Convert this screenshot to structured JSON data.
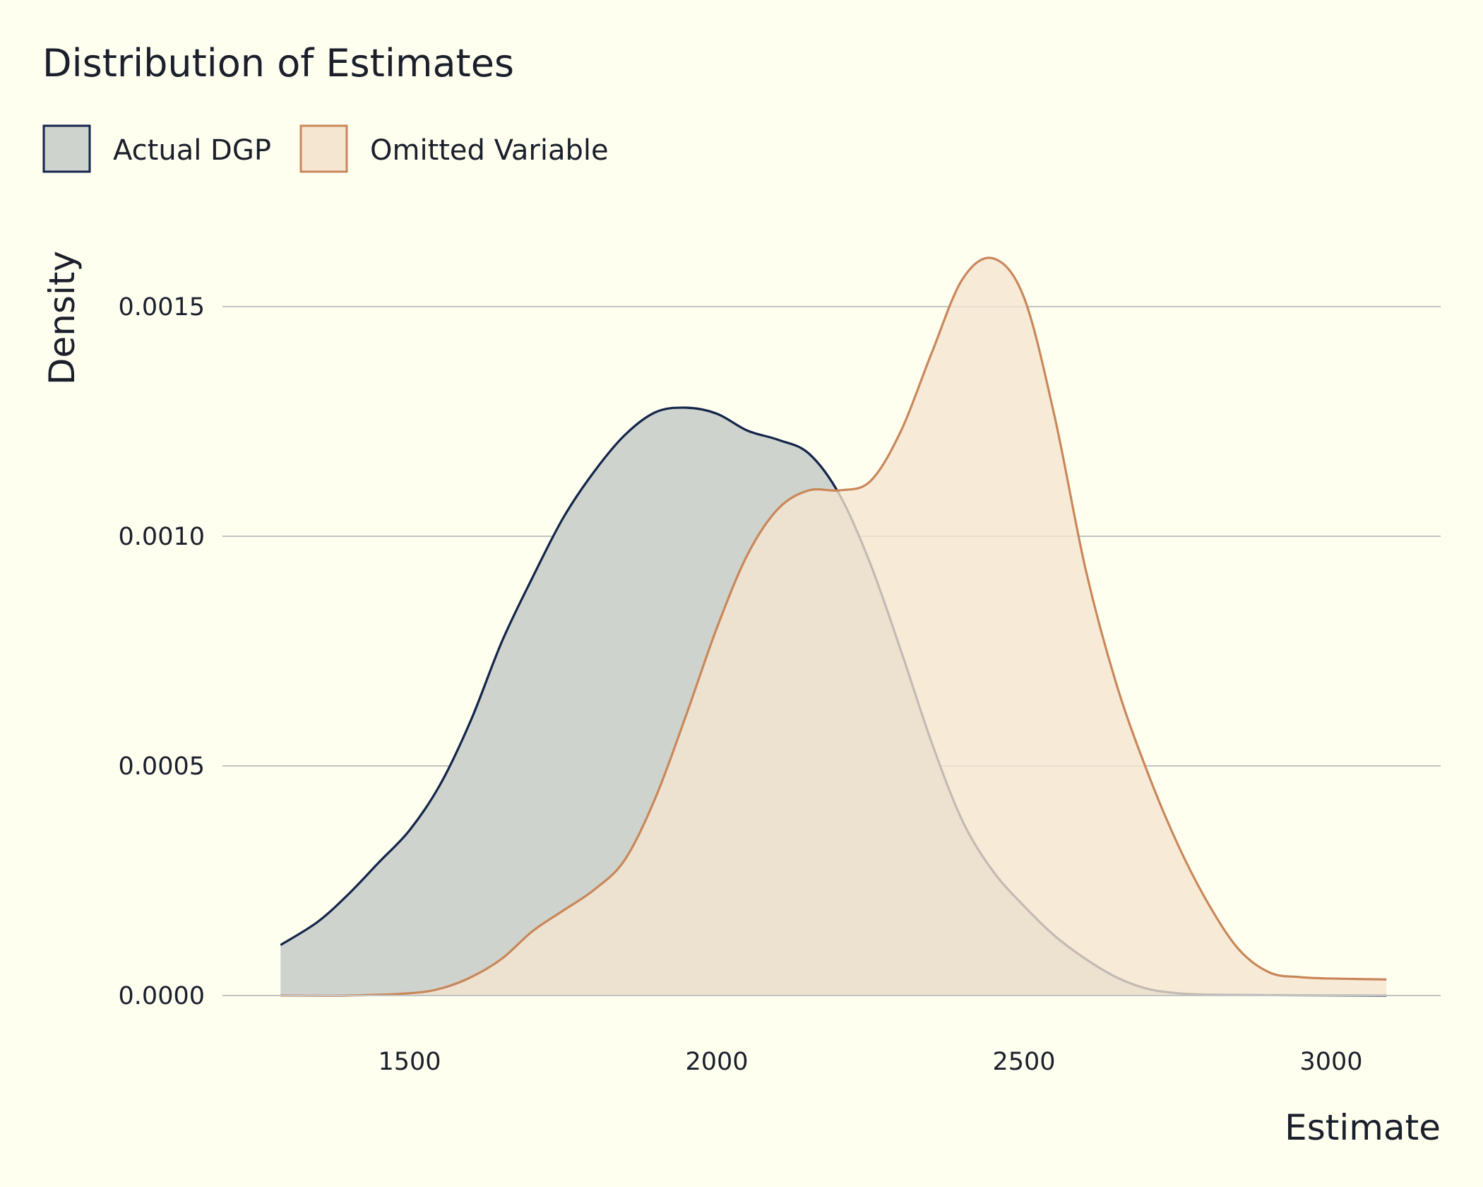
{
  "chart_data": {
    "type": "area",
    "title": "Distribution of Estimates",
    "xlabel": "Estimate",
    "ylabel": "Density",
    "xlim": [
      1290,
      3090
    ],
    "ylim": [
      0,
      0.00162
    ],
    "x_ticks": [
      1500,
      2000,
      2500,
      3000
    ],
    "x_tick_labels": [
      "1500",
      "2000",
      "2500",
      "3000"
    ],
    "y_ticks": [
      0,
      0.0005,
      0.001,
      0.0015
    ],
    "y_tick_labels": [
      "0.0000",
      "0.0005",
      "0.0010",
      "0.0015"
    ],
    "grid": "horizontal",
    "legend_position": "top-left",
    "series": [
      {
        "name": "Actual DGP",
        "fill": "#cfd3cd",
        "stroke": "#13254a",
        "points": [
          [
            1290,
            0.00011
          ],
          [
            1350,
            0.00016
          ],
          [
            1400,
            0.00022
          ],
          [
            1450,
            0.00029
          ],
          [
            1500,
            0.00036
          ],
          [
            1550,
            0.00046
          ],
          [
            1600,
            0.0006
          ],
          [
            1650,
            0.00077
          ],
          [
            1700,
            0.00091
          ],
          [
            1750,
            0.00104
          ],
          [
            1800,
            0.00114
          ],
          [
            1850,
            0.00122
          ],
          [
            1900,
            0.00127
          ],
          [
            1950,
            0.00128
          ],
          [
            2000,
            0.001267
          ],
          [
            2050,
            0.00123
          ],
          [
            2100,
            0.00121
          ],
          [
            2150,
            0.00118
          ],
          [
            2200,
            0.00109
          ],
          [
            2250,
            0.00094
          ],
          [
            2300,
            0.00075
          ],
          [
            2350,
            0.00055
          ],
          [
            2400,
            0.00038
          ],
          [
            2450,
            0.00027
          ],
          [
            2500,
            0.000195
          ],
          [
            2550,
            0.00013
          ],
          [
            2600,
            8e-05
          ],
          [
            2650,
            4e-05
          ],
          [
            2700,
            1.5e-05
          ],
          [
            2750,
            5e-06
          ],
          [
            2800,
            2e-06
          ],
          [
            2900,
            1e-06
          ],
          [
            3090,
            0
          ]
        ]
      },
      {
        "name": "Omitted Variable",
        "fill": "#f5e6d1",
        "stroke": "#c9875a",
        "points": [
          [
            1290,
            0
          ],
          [
            1400,
            0
          ],
          [
            1500,
            5e-06
          ],
          [
            1550,
            1.5e-05
          ],
          [
            1600,
            4e-05
          ],
          [
            1650,
            8e-05
          ],
          [
            1700,
            0.00014
          ],
          [
            1750,
            0.000185
          ],
          [
            1800,
            0.00023
          ],
          [
            1850,
            0.000295
          ],
          [
            1900,
            0.00043
          ],
          [
            1950,
            0.00061
          ],
          [
            2000,
            0.0008
          ],
          [
            2050,
            0.00096
          ],
          [
            2100,
            0.00106
          ],
          [
            2150,
            0.0011
          ],
          [
            2200,
            0.0011
          ],
          [
            2250,
            0.00112
          ],
          [
            2300,
            0.00123
          ],
          [
            2350,
            0.0014
          ],
          [
            2400,
            0.00156
          ],
          [
            2450,
            0.001605
          ],
          [
            2500,
            0.00152
          ],
          [
            2550,
            0.00126
          ],
          [
            2600,
            0.00093
          ],
          [
            2650,
            0.00068
          ],
          [
            2700,
            0.00049
          ],
          [
            2750,
            0.00033
          ],
          [
            2800,
            0.0002
          ],
          [
            2850,
            0.0001
          ],
          [
            2900,
            5e-05
          ],
          [
            2950,
            4e-05
          ],
          [
            3000,
            3.7e-05
          ],
          [
            3090,
            3.5e-05
          ]
        ]
      }
    ]
  }
}
